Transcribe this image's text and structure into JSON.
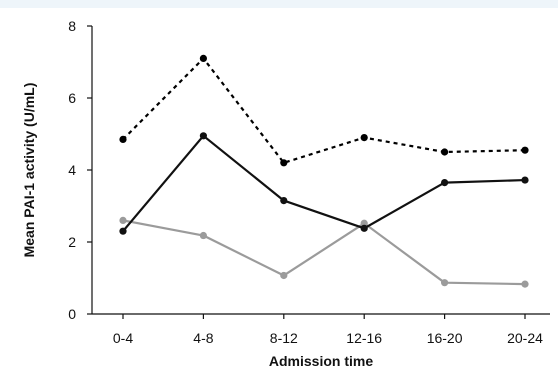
{
  "chart_data": {
    "type": "line",
    "categories": [
      "0-4",
      "4-8",
      "8-12",
      "12-16",
      "16-20",
      "20-24"
    ],
    "series": [
      {
        "name": "",
        "style": "dotted",
        "color": "#000000",
        "values": [
          4.85,
          7.1,
          4.2,
          4.9,
          4.5,
          4.55
        ]
      },
      {
        "name": "",
        "style": "solid",
        "color": "#111111",
        "values": [
          2.3,
          4.95,
          3.15,
          2.38,
          3.65,
          3.72
        ]
      },
      {
        "name": "",
        "style": "solid",
        "color": "#9b9b9b",
        "values": [
          2.6,
          2.18,
          1.07,
          2.52,
          0.87,
          0.83
        ]
      }
    ],
    "title": "",
    "xlabel": "Admission time",
    "ylabel": "Mean PAI-1 activity (U/mL)",
    "ylim": [
      0,
      8
    ],
    "yticks": [
      0,
      2,
      4,
      6,
      8
    ],
    "grid": false,
    "legend": "none"
  }
}
